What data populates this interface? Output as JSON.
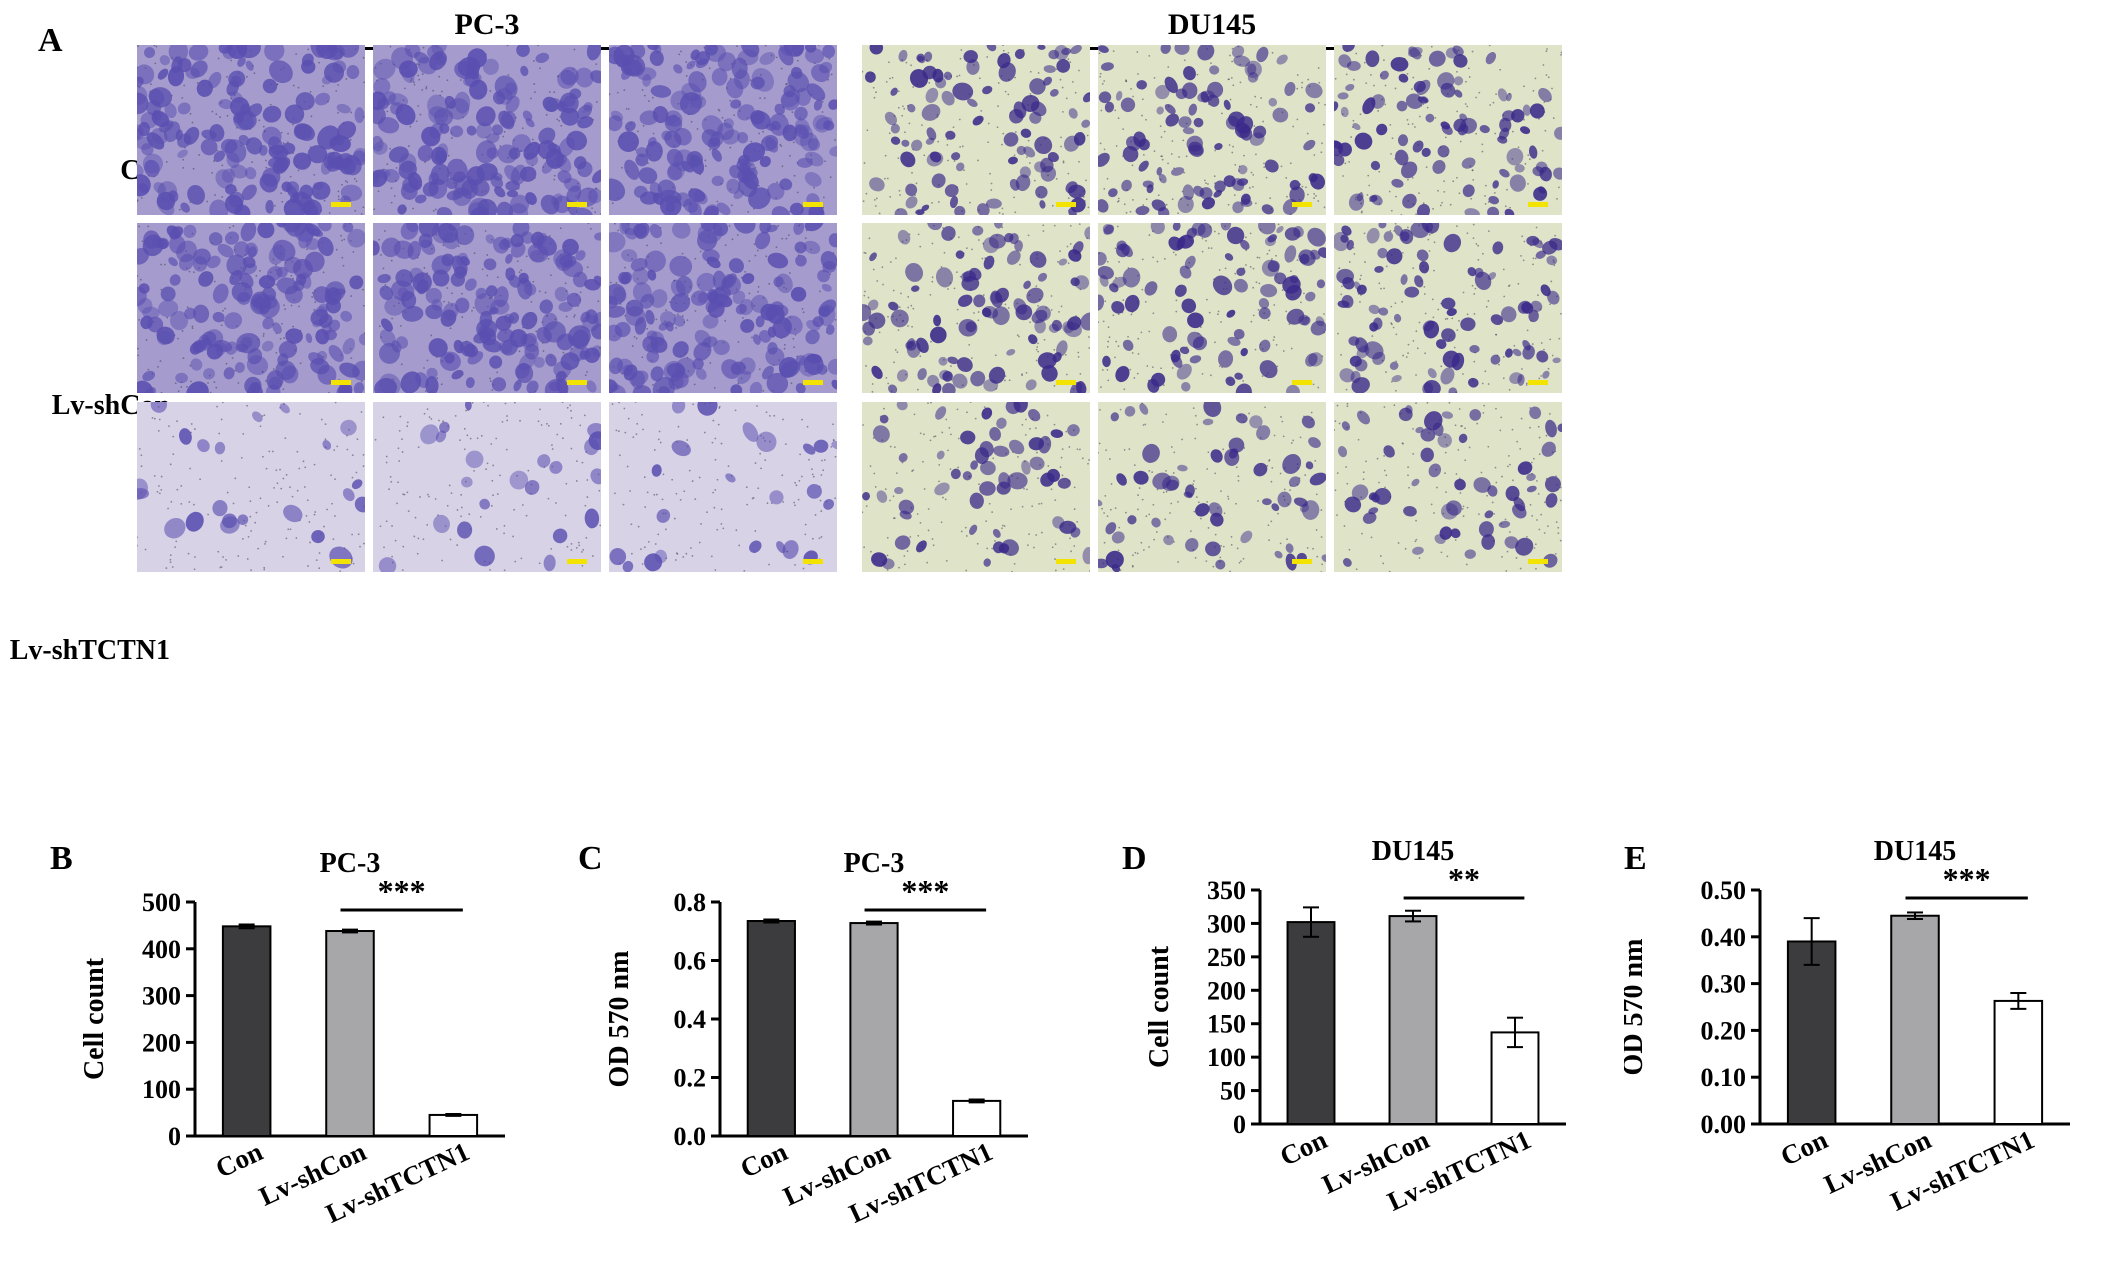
{
  "figure": {
    "panel_a": {
      "letter": "A",
      "groups": [
        {
          "title": "PC-3",
          "stain": "pc3"
        },
        {
          "title": "DU145",
          "stain": "du145"
        }
      ],
      "rows": [
        "Con",
        "Lv-shCon",
        "Lv-shTCTN1"
      ],
      "scale_bar_color": "#f2e400",
      "pc3_stain_color": "#5a4fb0",
      "du145_stain_color": "#3b2a8a",
      "pc3_background": "#a59ccd",
      "du145_background": "#dfe4c8"
    }
  },
  "chart_data": [
    {
      "letter": "B",
      "type": "bar",
      "title": "PC-3",
      "ylabel": "Cell count",
      "categories": [
        "Con",
        "Lv-shCon",
        "Lv-shTCTN1"
      ],
      "values": [
        448,
        438,
        45
      ],
      "errors": [
        4,
        3,
        2
      ],
      "ylim": [
        0,
        500
      ],
      "yticks": [
        "0",
        "100",
        "200",
        "300",
        "400",
        "500"
      ],
      "ytick_values": [
        0,
        100,
        200,
        300,
        400,
        500
      ],
      "significance": {
        "label": "***",
        "from": 1,
        "to": 2
      },
      "bar_colors": [
        "#3c3c3e",
        "#a7a7a9",
        "#ffffff"
      ]
    },
    {
      "letter": "C",
      "type": "bar",
      "title": "PC-3",
      "ylabel": "OD 570 nm",
      "categories": [
        "Con",
        "Lv-shCon",
        "Lv-shTCTN1"
      ],
      "values": [
        0.735,
        0.728,
        0.12
      ],
      "errors": [
        0.005,
        0.005,
        0.005
      ],
      "ylim": [
        0,
        0.8
      ],
      "yticks": [
        "0.0",
        "0.2",
        "0.4",
        "0.6",
        "0.8"
      ],
      "ytick_values": [
        0,
        0.2,
        0.4,
        0.6,
        0.8
      ],
      "significance": {
        "label": "***",
        "from": 1,
        "to": 2
      },
      "bar_colors": [
        "#3c3c3e",
        "#a7a7a9",
        "#ffffff"
      ]
    },
    {
      "letter": "D",
      "type": "bar",
      "title": "DU145",
      "ylabel": "Cell count",
      "categories": [
        "Con",
        "Lv-shCon",
        "Lv-shTCTN1"
      ],
      "values": [
        302,
        311,
        137
      ],
      "errors": [
        22,
        8,
        22
      ],
      "ylim": [
        0,
        350
      ],
      "yticks": [
        "0",
        "50",
        "100",
        "150",
        "200",
        "250",
        "300",
        "350"
      ],
      "ytick_values": [
        0,
        50,
        100,
        150,
        200,
        250,
        300,
        350
      ],
      "significance": {
        "label": "**",
        "from": 1,
        "to": 2
      },
      "bar_colors": [
        "#3c3c3e",
        "#a7a7a9",
        "#ffffff"
      ]
    },
    {
      "letter": "E",
      "type": "bar",
      "title": "DU145",
      "ylabel": "OD 570 nm",
      "categories": [
        "Con",
        "Lv-shCon",
        "Lv-shTCTN1"
      ],
      "values": [
        0.39,
        0.445,
        0.263
      ],
      "errors": [
        0.05,
        0.007,
        0.017
      ],
      "ylim": [
        0,
        0.5
      ],
      "yticks": [
        "0.00",
        "0.10",
        "0.20",
        "0.30",
        "0.40",
        "0.50"
      ],
      "ytick_values": [
        0,
        0.1,
        0.2,
        0.3,
        0.4,
        0.5
      ],
      "significance": {
        "label": "***",
        "from": 1,
        "to": 2
      },
      "bar_colors": [
        "#3c3c3e",
        "#a7a7a9",
        "#ffffff"
      ]
    }
  ]
}
